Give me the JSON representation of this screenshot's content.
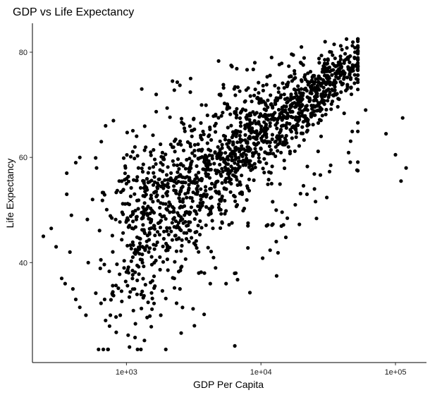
{
  "chart_data": {
    "type": "scatter",
    "title": "GDP vs Life Expectancy",
    "xlabel": "GDP Per Capita",
    "ylabel": "Life Expectancy",
    "x_scale": "log10",
    "xlim": [
      200,
      170000
    ],
    "ylim": [
      21,
      85.5
    ],
    "x_ticks": [
      {
        "value": 1000,
        "label": "1e+03"
      },
      {
        "value": 10000,
        "label": "1e+04"
      },
      {
        "value": 100000,
        "label": "1e+05"
      }
    ],
    "y_ticks": [
      {
        "value": 40,
        "label": "40"
      },
      {
        "value": 60,
        "label": "60"
      },
      {
        "value": 80,
        "label": "80"
      }
    ],
    "grid": false,
    "legend": "none",
    "point_color": "#000000",
    "n_points": 1704,
    "points": [
      [
        241,
        45
      ],
      [
        300,
        43
      ],
      [
        276,
        46.5
      ],
      [
        330,
        37
      ],
      [
        350,
        36
      ],
      [
        400,
        35
      ],
      [
        420,
        33
      ],
      [
        450,
        31.5
      ],
      [
        500,
        30
      ],
      [
        700,
        29
      ],
      [
        620,
        23.5
      ],
      [
        760,
        30
      ],
      [
        520,
        40
      ],
      [
        380,
        42
      ],
      [
        360,
        53
      ],
      [
        360,
        57
      ],
      [
        390,
        49
      ],
      [
        450,
        60
      ],
      [
        420,
        59
      ],
      [
        560,
        52
      ],
      [
        600,
        58
      ],
      [
        650,
        63
      ],
      [
        700,
        66
      ],
      [
        800,
        67
      ],
      [
        1000,
        55
      ],
      [
        1300,
        73
      ],
      [
        2200,
        74.5
      ],
      [
        3000,
        75
      ],
      [
        4000,
        68
      ],
      [
        5000,
        72
      ],
      [
        6000,
        77.5
      ],
      [
        9000,
        78
      ],
      [
        12000,
        79
      ],
      [
        20000,
        81
      ],
      [
        30000,
        82
      ],
      [
        35000,
        81.5
      ],
      [
        40000,
        80.5
      ],
      [
        50000,
        80
      ],
      [
        60000,
        69
      ],
      [
        85000,
        64.5
      ],
      [
        100000,
        60.5
      ],
      [
        113000,
        67.5
      ],
      [
        110000,
        55.5
      ],
      [
        120000,
        58
      ],
      [
        3200,
        28
      ],
      [
        4200,
        36
      ],
      [
        5500,
        36
      ],
      [
        6500,
        38
      ],
      [
        8000,
        47
      ],
      [
        12000,
        55
      ],
      [
        18000,
        51
      ],
      [
        22000,
        53
      ],
      [
        25000,
        54
      ],
      [
        28000,
        64
      ],
      [
        33000,
        58.5
      ],
      [
        16000,
        62
      ],
      [
        14000,
        65
      ],
      [
        11000,
        47
      ],
      [
        13000,
        44
      ],
      [
        4600,
        39
      ],
      [
        3800,
        38
      ],
      [
        2500,
        35
      ],
      [
        1800,
        30
      ],
      [
        900,
        30
      ],
      [
        2000,
        46
      ],
      [
        2800,
        47
      ],
      [
        3500,
        50
      ],
      [
        6000,
        55
      ]
    ]
  }
}
